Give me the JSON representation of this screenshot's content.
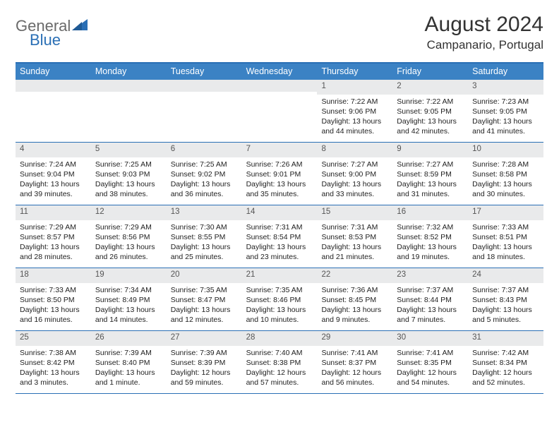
{
  "brand": {
    "part1": "General",
    "part2": "Blue"
  },
  "title": "August 2024",
  "location": "Campanario, Portugal",
  "colors": {
    "header_bg": "#3b82c4",
    "border": "#2a6fb5",
    "daynum_bg": "#e9eaeb",
    "logo_gray": "#6a6a6a",
    "logo_blue": "#2a6fb5"
  },
  "day_headers": [
    "Sunday",
    "Monday",
    "Tuesday",
    "Wednesday",
    "Thursday",
    "Friday",
    "Saturday"
  ],
  "weeks": [
    [
      {
        "n": "",
        "lines": []
      },
      {
        "n": "",
        "lines": []
      },
      {
        "n": "",
        "lines": []
      },
      {
        "n": "",
        "lines": []
      },
      {
        "n": "1",
        "lines": [
          "Sunrise: 7:22 AM",
          "Sunset: 9:06 PM",
          "Daylight: 13 hours",
          "and 44 minutes."
        ]
      },
      {
        "n": "2",
        "lines": [
          "Sunrise: 7:22 AM",
          "Sunset: 9:05 PM",
          "Daylight: 13 hours",
          "and 42 minutes."
        ]
      },
      {
        "n": "3",
        "lines": [
          "Sunrise: 7:23 AM",
          "Sunset: 9:05 PM",
          "Daylight: 13 hours",
          "and 41 minutes."
        ]
      }
    ],
    [
      {
        "n": "4",
        "lines": [
          "Sunrise: 7:24 AM",
          "Sunset: 9:04 PM",
          "Daylight: 13 hours",
          "and 39 minutes."
        ]
      },
      {
        "n": "5",
        "lines": [
          "Sunrise: 7:25 AM",
          "Sunset: 9:03 PM",
          "Daylight: 13 hours",
          "and 38 minutes."
        ]
      },
      {
        "n": "6",
        "lines": [
          "Sunrise: 7:25 AM",
          "Sunset: 9:02 PM",
          "Daylight: 13 hours",
          "and 36 minutes."
        ]
      },
      {
        "n": "7",
        "lines": [
          "Sunrise: 7:26 AM",
          "Sunset: 9:01 PM",
          "Daylight: 13 hours",
          "and 35 minutes."
        ]
      },
      {
        "n": "8",
        "lines": [
          "Sunrise: 7:27 AM",
          "Sunset: 9:00 PM",
          "Daylight: 13 hours",
          "and 33 minutes."
        ]
      },
      {
        "n": "9",
        "lines": [
          "Sunrise: 7:27 AM",
          "Sunset: 8:59 PM",
          "Daylight: 13 hours",
          "and 31 minutes."
        ]
      },
      {
        "n": "10",
        "lines": [
          "Sunrise: 7:28 AM",
          "Sunset: 8:58 PM",
          "Daylight: 13 hours",
          "and 30 minutes."
        ]
      }
    ],
    [
      {
        "n": "11",
        "lines": [
          "Sunrise: 7:29 AM",
          "Sunset: 8:57 PM",
          "Daylight: 13 hours",
          "and 28 minutes."
        ]
      },
      {
        "n": "12",
        "lines": [
          "Sunrise: 7:29 AM",
          "Sunset: 8:56 PM",
          "Daylight: 13 hours",
          "and 26 minutes."
        ]
      },
      {
        "n": "13",
        "lines": [
          "Sunrise: 7:30 AM",
          "Sunset: 8:55 PM",
          "Daylight: 13 hours",
          "and 25 minutes."
        ]
      },
      {
        "n": "14",
        "lines": [
          "Sunrise: 7:31 AM",
          "Sunset: 8:54 PM",
          "Daylight: 13 hours",
          "and 23 minutes."
        ]
      },
      {
        "n": "15",
        "lines": [
          "Sunrise: 7:31 AM",
          "Sunset: 8:53 PM",
          "Daylight: 13 hours",
          "and 21 minutes."
        ]
      },
      {
        "n": "16",
        "lines": [
          "Sunrise: 7:32 AM",
          "Sunset: 8:52 PM",
          "Daylight: 13 hours",
          "and 19 minutes."
        ]
      },
      {
        "n": "17",
        "lines": [
          "Sunrise: 7:33 AM",
          "Sunset: 8:51 PM",
          "Daylight: 13 hours",
          "and 18 minutes."
        ]
      }
    ],
    [
      {
        "n": "18",
        "lines": [
          "Sunrise: 7:33 AM",
          "Sunset: 8:50 PM",
          "Daylight: 13 hours",
          "and 16 minutes."
        ]
      },
      {
        "n": "19",
        "lines": [
          "Sunrise: 7:34 AM",
          "Sunset: 8:49 PM",
          "Daylight: 13 hours",
          "and 14 minutes."
        ]
      },
      {
        "n": "20",
        "lines": [
          "Sunrise: 7:35 AM",
          "Sunset: 8:47 PM",
          "Daylight: 13 hours",
          "and 12 minutes."
        ]
      },
      {
        "n": "21",
        "lines": [
          "Sunrise: 7:35 AM",
          "Sunset: 8:46 PM",
          "Daylight: 13 hours",
          "and 10 minutes."
        ]
      },
      {
        "n": "22",
        "lines": [
          "Sunrise: 7:36 AM",
          "Sunset: 8:45 PM",
          "Daylight: 13 hours",
          "and 9 minutes."
        ]
      },
      {
        "n": "23",
        "lines": [
          "Sunrise: 7:37 AM",
          "Sunset: 8:44 PM",
          "Daylight: 13 hours",
          "and 7 minutes."
        ]
      },
      {
        "n": "24",
        "lines": [
          "Sunrise: 7:37 AM",
          "Sunset: 8:43 PM",
          "Daylight: 13 hours",
          "and 5 minutes."
        ]
      }
    ],
    [
      {
        "n": "25",
        "lines": [
          "Sunrise: 7:38 AM",
          "Sunset: 8:42 PM",
          "Daylight: 13 hours",
          "and 3 minutes."
        ]
      },
      {
        "n": "26",
        "lines": [
          "Sunrise: 7:39 AM",
          "Sunset: 8:40 PM",
          "Daylight: 13 hours",
          "and 1 minute."
        ]
      },
      {
        "n": "27",
        "lines": [
          "Sunrise: 7:39 AM",
          "Sunset: 8:39 PM",
          "Daylight: 12 hours",
          "and 59 minutes."
        ]
      },
      {
        "n": "28",
        "lines": [
          "Sunrise: 7:40 AM",
          "Sunset: 8:38 PM",
          "Daylight: 12 hours",
          "and 57 minutes."
        ]
      },
      {
        "n": "29",
        "lines": [
          "Sunrise: 7:41 AM",
          "Sunset: 8:37 PM",
          "Daylight: 12 hours",
          "and 56 minutes."
        ]
      },
      {
        "n": "30",
        "lines": [
          "Sunrise: 7:41 AM",
          "Sunset: 8:35 PM",
          "Daylight: 12 hours",
          "and 54 minutes."
        ]
      },
      {
        "n": "31",
        "lines": [
          "Sunrise: 7:42 AM",
          "Sunset: 8:34 PM",
          "Daylight: 12 hours",
          "and 52 minutes."
        ]
      }
    ]
  ]
}
